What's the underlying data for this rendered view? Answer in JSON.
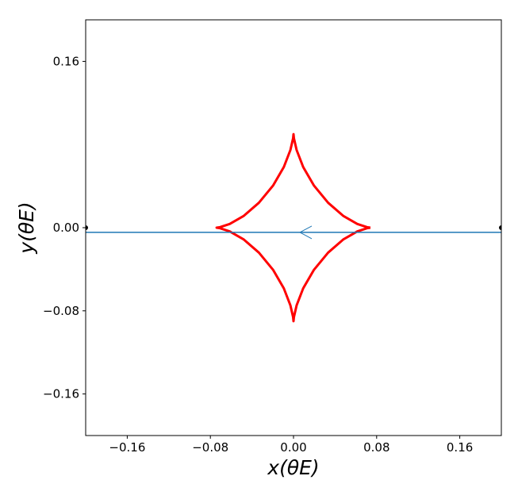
{
  "chart_data": {
    "type": "line",
    "xlabel": "x(θE)",
    "ylabel": "y(θE)",
    "xlim": [
      -0.2,
      0.2
    ],
    "ylim": [
      -0.2,
      0.2
    ],
    "xticks": [
      {
        "value": -0.16,
        "label": "−0.16"
      },
      {
        "value": -0.08,
        "label": "−0.08"
      },
      {
        "value": 0,
        "label": "0.00"
      },
      {
        "value": 0.08,
        "label": "0.08"
      },
      {
        "value": 0.16,
        "label": "0.16"
      }
    ],
    "yticks": [
      {
        "value": -0.16,
        "label": "−0.16"
      },
      {
        "value": -0.08,
        "label": "−0.08"
      },
      {
        "value": 0,
        "label": "0.00"
      },
      {
        "value": 0.16,
        "label": "0.16"
      }
    ],
    "series": [
      {
        "color": "#ff0000",
        "width": 3,
        "x": [
          0.074,
          0.0707,
          0.0614,
          0.0481,
          0.0333,
          0.0197,
          0.0093,
          0.003,
          0.0004,
          0,
          -0.0004,
          -0.003,
          -0.0093,
          -0.0197,
          -0.0333,
          -0.0481,
          -0.0614,
          -0.0707,
          -0.074,
          -0.0707,
          -0.0614,
          -0.0481,
          -0.0333,
          -0.0197,
          -0.0093,
          -0.003,
          -0.0004,
          0,
          0.0004,
          0.003,
          0.0093,
          0.0197,
          0.0333,
          0.0481,
          0.0614,
          0.0707,
          0.074
        ],
        "values": [
          0,
          0.0005,
          0.0036,
          0.0112,
          0.024,
          0.0405,
          0.0584,
          0.0747,
          0.086,
          0.09,
          0.086,
          0.0747,
          0.0584,
          0.0405,
          0.024,
          0.0112,
          0.0036,
          0.0005,
          0,
          -0.0005,
          -0.0036,
          -0.0112,
          -0.024,
          -0.0405,
          -0.0584,
          -0.0747,
          -0.086,
          -0.09,
          -0.086,
          -0.0747,
          -0.0584,
          -0.0405,
          -0.024,
          -0.0112,
          -0.0036,
          -0.0005,
          0
        ]
      },
      {
        "color": "#1f77b4",
        "width": 1.5,
        "arrow": "left",
        "x": [
          -0.2,
          0.2
        ],
        "values": [
          -0.0045,
          -0.0045
        ]
      },
      {
        "color": "#000000",
        "marker": true,
        "x": [
          -0.2,
          0.2
        ],
        "values": [
          0,
          0
        ]
      }
    ]
  }
}
